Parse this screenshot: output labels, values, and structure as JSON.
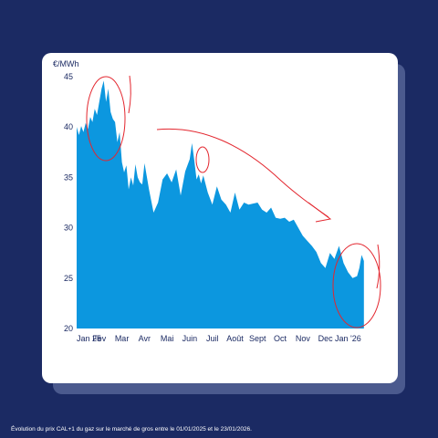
{
  "caption": "Évolution du prix CAL+1 du gaz sur le marché de gros entre le 01/01/2025 et le 23/01/2026.",
  "chart_data": {
    "type": "area",
    "title": "",
    "xlabel": "",
    "ylabel": "€/MWh",
    "ylim": [
      20,
      45
    ],
    "yticks": [
      20,
      25,
      30,
      35,
      40,
      45
    ],
    "xlim": [
      0,
      12.75
    ],
    "xticks": [
      {
        "label": "Jan 25",
        "x": 0
      },
      {
        "label": "Fev",
        "x": 1
      },
      {
        "label": "Mar",
        "x": 2
      },
      {
        "label": "Avr",
        "x": 3
      },
      {
        "label": "Mai",
        "x": 4
      },
      {
        "label": "Juin",
        "x": 5
      },
      {
        "label": "Juil",
        "x": 6
      },
      {
        "label": "Août",
        "x": 7
      },
      {
        "label": "Sept",
        "x": 8
      },
      {
        "label": "Oct",
        "x": 9
      },
      {
        "label": "Nov",
        "x": 10
      },
      {
        "label": "Dec",
        "x": 11
      },
      {
        "label": "Jan '26",
        "x": 12
      }
    ],
    "grid": false,
    "fill_color": "#0c97df",
    "annotation_color": "#e3262e",
    "series": [
      {
        "x": [
          0,
          0.1,
          0.2,
          0.3,
          0.4,
          0.5,
          0.6,
          0.7,
          0.8,
          0.9,
          1.0,
          1.1,
          1.2,
          1.3,
          1.4,
          1.5,
          1.6,
          1.7,
          1.8,
          1.9,
          2.0,
          2.1,
          2.2,
          2.3,
          2.4,
          2.5,
          2.6,
          2.7,
          2.8,
          2.9,
          3.0,
          3.2,
          3.4,
          3.6,
          3.8,
          4.0,
          4.2,
          4.4,
          4.6,
          4.8,
          5.0,
          5.1,
          5.2,
          5.3,
          5.4,
          5.5,
          5.6,
          5.8,
          6.0,
          6.2,
          6.4,
          6.6,
          6.8,
          7.0,
          7.2,
          7.4,
          7.6,
          7.8,
          8.0,
          8.2,
          8.4,
          8.6,
          8.8,
          9.0,
          9.2,
          9.4,
          9.6,
          9.8,
          10.0,
          10.2,
          10.4,
          10.6,
          10.8,
          11.0,
          11.2,
          11.4,
          11.6,
          11.8,
          12.0,
          12.2,
          12.4,
          12.5,
          12.6,
          12.7
        ],
        "values": [
          40.0,
          39.2,
          40.1,
          39.5,
          40.4,
          39.8,
          41.0,
          40.5,
          41.8,
          41.2,
          42.5,
          43.8,
          44.6,
          42.5,
          43.8,
          41.5,
          40.8,
          40.5,
          38.5,
          39.5,
          36.5,
          35.5,
          36.2,
          33.8,
          35.0,
          34.2,
          36.3,
          35.0,
          34.5,
          34.3,
          36.4,
          33.8,
          31.5,
          32.5,
          34.8,
          35.4,
          34.5,
          35.8,
          33.2,
          35.6,
          36.8,
          38.4,
          36.7,
          34.8,
          35.3,
          34.4,
          35.2,
          33.5,
          32.3,
          34.1,
          32.8,
          32.3,
          31.5,
          33.5,
          31.8,
          32.5,
          32.3,
          32.4,
          32.5,
          31.8,
          31.5,
          32.0,
          31.0,
          30.9,
          31.0,
          30.6,
          30.8,
          30.0,
          29.2,
          28.7,
          28.2,
          27.6,
          26.5,
          26.0,
          27.5,
          26.9,
          28.2,
          26.5,
          25.6,
          25.0,
          25.2,
          26.0,
          27.3,
          26.7
        ]
      }
    ]
  }
}
